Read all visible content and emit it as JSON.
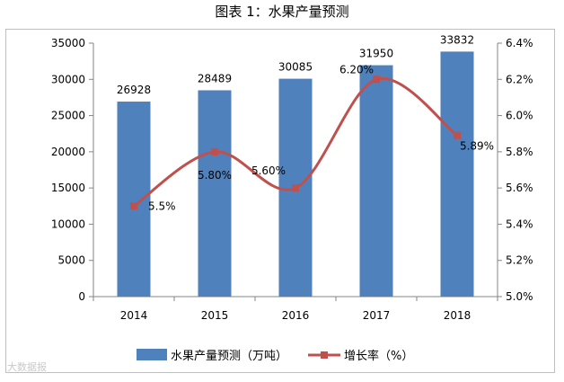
{
  "header": {
    "title": "图表 1：水果产量预测"
  },
  "watermark": "大数据报",
  "chart_data": {
    "type": "bar",
    "title": "图表 1：水果产量预测",
    "categories": [
      "2014",
      "2015",
      "2016",
      "2017",
      "2018"
    ],
    "series": [
      {
        "name": "水果产量预测（万吨）",
        "type": "bar",
        "axis": "left",
        "color": "#4f81bd",
        "values": [
          26928,
          28489,
          30085,
          31950,
          33832
        ],
        "labels": [
          "26928",
          "28489",
          "30085",
          "31950",
          "33832"
        ]
      },
      {
        "name": "增长率（%）",
        "type": "line",
        "axis": "right",
        "color": "#c0504d",
        "values": [
          5.5,
          5.8,
          5.6,
          6.2,
          5.89
        ],
        "labels": [
          "5.5%",
          "5.80%",
          "5.60%",
          "6.20%",
          "5.89%"
        ]
      }
    ],
    "y_left": {
      "ylim": [
        0,
        35000
      ],
      "ticks": [
        "0",
        "5000",
        "10000",
        "15000",
        "20000",
        "25000",
        "30000",
        "35000"
      ]
    },
    "y_right": {
      "ylim": [
        5.0,
        6.4
      ],
      "ticks": [
        "5.0%",
        "5.2%",
        "5.4%",
        "5.6%",
        "5.8%",
        "6.0%",
        "6.2%",
        "6.4%"
      ]
    },
    "legend_position": "bottom",
    "grid": false
  }
}
